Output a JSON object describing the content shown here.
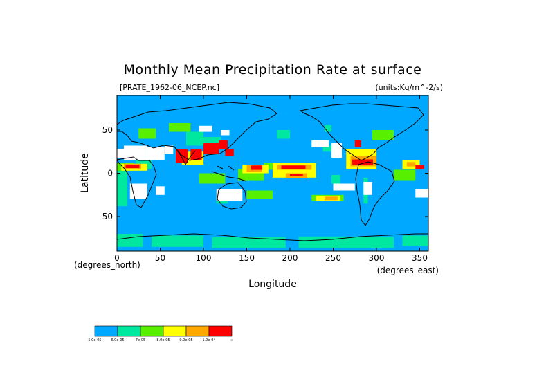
{
  "chart_data": {
    "type": "heatmap",
    "title": "Monthly Mean Precipitation Rate at surface",
    "file_label": "[PRATE_1962-06_NCEP.nc]",
    "units_label": "(units:Kg/m^-2/s)",
    "xlabel": "Longitude",
    "ylabel": "Latitude",
    "x_unit_note": "(degrees_east)",
    "y_unit_note": "(degrees_north)",
    "xlim": [
      0,
      360
    ],
    "ylim": [
      -90,
      90
    ],
    "x_ticks": [
      0,
      50,
      100,
      150,
      200,
      250,
      300,
      350
    ],
    "y_ticks": [
      50,
      0,
      -50
    ],
    "x_tick_labels": [
      "0",
      "50",
      "100",
      "150",
      "200",
      "250",
      "300",
      "350"
    ],
    "y_tick_labels": [
      "50",
      "0",
      "-50"
    ],
    "grid": false,
    "background_color": "#00a8ff",
    "colorbar": {
      "colors": [
        "#00a8ff",
        "#00e8a0",
        "#58f000",
        "#ffff00",
        "#ffa800",
        "#ff0000"
      ],
      "labels": [
        "5.0e-05",
        "6.0e-05",
        "7e-05",
        "8.0e-05",
        "9.0e-05",
        "1.0e-04"
      ],
      "end_label": "∞"
    },
    "regions": [
      {
        "level": "low",
        "lon": [
          0,
          12
        ],
        "lat": [
          -38,
          5
        ]
      },
      {
        "level": "low",
        "lon": [
          22,
          40
        ],
        "lat": [
          5,
          25
        ]
      },
      {
        "level": "low",
        "lon": [
          100,
          120
        ],
        "lat": [
          30,
          42
        ]
      },
      {
        "level": "low",
        "lon": [
          80,
          100
        ],
        "lat": [
          32,
          48
        ]
      },
      {
        "level": "low",
        "lon": [
          115,
          128
        ],
        "lat": [
          -35,
          -20
        ]
      },
      {
        "level": "low",
        "lon": [
          238,
          252
        ],
        "lat": [
          25,
          32
        ]
      },
      {
        "level": "low",
        "lon": [
          248,
          258
        ],
        "lat": [
          -12,
          -2
        ]
      },
      {
        "level": "low",
        "lon": [
          285,
          290
        ],
        "lat": [
          -35,
          -5
        ]
      },
      {
        "level": "low",
        "lon": [
          0,
          30
        ],
        "lat": [
          -85,
          -70
        ]
      },
      {
        "level": "low",
        "lon": [
          40,
          100
        ],
        "lat": [
          -85,
          -72
        ]
      },
      {
        "level": "low",
        "lon": [
          110,
          195
        ],
        "lat": [
          -86,
          -74
        ]
      },
      {
        "level": "low",
        "lon": [
          210,
          320
        ],
        "lat": [
          -86,
          -73
        ]
      },
      {
        "level": "low",
        "lon": [
          330,
          360
        ],
        "lat": [
          -84,
          -72
        ]
      },
      {
        "level": "low",
        "lon": [
          185,
          200
        ],
        "lat": [
          40,
          50
        ]
      },
      {
        "level": "low",
        "lon": [
          240,
          248
        ],
        "lat": [
          48,
          56
        ]
      },
      {
        "level": "l2",
        "lon": [
          0,
          20
        ],
        "lat": [
          3,
          12
        ]
      },
      {
        "level": "l2",
        "lon": [
          25,
          45
        ],
        "lat": [
          40,
          52
        ]
      },
      {
        "level": "l2",
        "lon": [
          60,
          85
        ],
        "lat": [
          48,
          58
        ]
      },
      {
        "level": "l2",
        "lon": [
          140,
          170
        ],
        "lat": [
          -8,
          5
        ]
      },
      {
        "level": "l2",
        "lon": [
          170,
          230
        ],
        "lat": [
          4,
          12
        ]
      },
      {
        "level": "l2",
        "lon": [
          225,
          262
        ],
        "lat": [
          -32,
          -25
        ]
      },
      {
        "level": "l2",
        "lon": [
          320,
          345
        ],
        "lat": [
          -8,
          4
        ]
      },
      {
        "level": "l2",
        "lon": [
          295,
          320
        ],
        "lat": [
          38,
          50
        ]
      },
      {
        "level": "l2",
        "lon": [
          95,
          125
        ],
        "lat": [
          -12,
          0
        ]
      },
      {
        "level": "l2",
        "lon": [
          150,
          180
        ],
        "lat": [
          -30,
          -20
        ]
      },
      {
        "level": "l3",
        "lon": [
          5,
          35
        ],
        "lat": [
          3,
          11
        ]
      },
      {
        "level": "l3",
        "lon": [
          145,
          175
        ],
        "lat": [
          0,
          10
        ]
      },
      {
        "level": "l3",
        "lon": [
          180,
          230
        ],
        "lat": [
          -5,
          12
        ]
      },
      {
        "level": "l3",
        "lon": [
          230,
          258
        ],
        "lat": [
          -32,
          -26
        ]
      },
      {
        "level": "l3",
        "lon": [
          75,
          100
        ],
        "lat": [
          10,
          25
        ]
      },
      {
        "level": "l3",
        "lon": [
          265,
          300
        ],
        "lat": [
          5,
          28
        ]
      },
      {
        "level": "l3",
        "lon": [
          330,
          350
        ],
        "lat": [
          5,
          15
        ]
      },
      {
        "level": "l4",
        "lon": [
          8,
          28
        ],
        "lat": [
          5,
          11
        ]
      },
      {
        "level": "l4",
        "lon": [
          150,
          168
        ],
        "lat": [
          2,
          10
        ]
      },
      {
        "level": "l4",
        "lon": [
          185,
          225
        ],
        "lat": [
          4,
          10
        ]
      },
      {
        "level": "l4",
        "lon": [
          195,
          220
        ],
        "lat": [
          -6,
          0
        ]
      },
      {
        "level": "l4",
        "lon": [
          270,
          300
        ],
        "lat": [
          8,
          20
        ]
      },
      {
        "level": "l4",
        "lon": [
          240,
          255
        ],
        "lat": [
          -31,
          -27
        ]
      },
      {
        "level": "l5",
        "lon": [
          10,
          26
        ],
        "lat": [
          5,
          10
        ]
      },
      {
        "level": "l5",
        "lon": [
          152,
          168
        ],
        "lat": [
          3,
          9
        ]
      },
      {
        "level": "l5",
        "lon": [
          190,
          220
        ],
        "lat": [
          5,
          9
        ]
      },
      {
        "level": "l5",
        "lon": [
          198,
          218
        ],
        "lat": [
          -4,
          -1
        ]
      },
      {
        "level": "l5",
        "lon": [
          272,
          298
        ],
        "lat": [
          10,
          18
        ]
      },
      {
        "level": "l5",
        "lon": [
          335,
          345
        ],
        "lat": [
          8,
          13
        ]
      },
      {
        "level": "high",
        "lon": [
          10,
          26
        ],
        "lat": [
          6,
          10
        ]
      },
      {
        "level": "high",
        "lon": [
          68,
          82
        ],
        "lat": [
          12,
          28
        ]
      },
      {
        "level": "high",
        "lon": [
          85,
          98
        ],
        "lat": [
          15,
          28
        ]
      },
      {
        "level": "high",
        "lon": [
          100,
          118
        ],
        "lat": [
          22,
          35
        ]
      },
      {
        "level": "high",
        "lon": [
          118,
          128
        ],
        "lat": [
          28,
          38
        ]
      },
      {
        "level": "high",
        "lon": [
          125,
          135
        ],
        "lat": [
          20,
          28
        ]
      },
      {
        "level": "high",
        "lon": [
          155,
          168
        ],
        "lat": [
          4,
          9
        ]
      },
      {
        "level": "high",
        "lon": [
          190,
          218
        ],
        "lat": [
          5,
          9
        ]
      },
      {
        "level": "high",
        "lon": [
          200,
          215
        ],
        "lat": [
          -3,
          -1
        ]
      },
      {
        "level": "high",
        "lon": [
          272,
          296
        ],
        "lat": [
          10,
          16
        ]
      },
      {
        "level": "high",
        "lon": [
          275,
          282
        ],
        "lat": [
          30,
          38
        ]
      },
      {
        "level": "high",
        "lon": [
          345,
          355
        ],
        "lat": [
          5,
          10
        ]
      },
      {
        "level": "dry",
        "lon": [
          0,
          10
        ],
        "lat": [
          18,
          28
        ]
      },
      {
        "level": "dry",
        "lon": [
          8,
          35
        ],
        "lat": [
          15,
          32
        ]
      },
      {
        "level": "dry",
        "lon": [
          35,
          55
        ],
        "lat": [
          15,
          30
        ]
      },
      {
        "level": "dry",
        "lon": [
          55,
          65
        ],
        "lat": [
          22,
          32
        ]
      },
      {
        "level": "dry",
        "lon": [
          15,
          35
        ],
        "lat": [
          -30,
          -12
        ]
      },
      {
        "level": "dry",
        "lon": [
          115,
          145
        ],
        "lat": [
          -32,
          -18
        ]
      },
      {
        "level": "dry",
        "lon": [
          248,
          260
        ],
        "lat": [
          18,
          35
        ]
      },
      {
        "level": "dry",
        "lon": [
          285,
          295
        ],
        "lat": [
          -25,
          -10
        ]
      },
      {
        "level": "dry",
        "lon": [
          250,
          275
        ],
        "lat": [
          -20,
          -12
        ]
      },
      {
        "level": "dry",
        "lon": [
          225,
          245
        ],
        "lat": [
          30,
          38
        ]
      },
      {
        "level": "dry",
        "lon": [
          345,
          360
        ],
        "lat": [
          -28,
          -18
        ]
      },
      {
        "level": "dry",
        "lon": [
          95,
          110
        ],
        "lat": [
          48,
          55
        ]
      },
      {
        "level": "dry",
        "lon": [
          120,
          130
        ],
        "lat": [
          44,
          50
        ]
      },
      {
        "level": "dry",
        "lon": [
          45,
          55
        ],
        "lat": [
          -25,
          -15
        ]
      }
    ]
  }
}
